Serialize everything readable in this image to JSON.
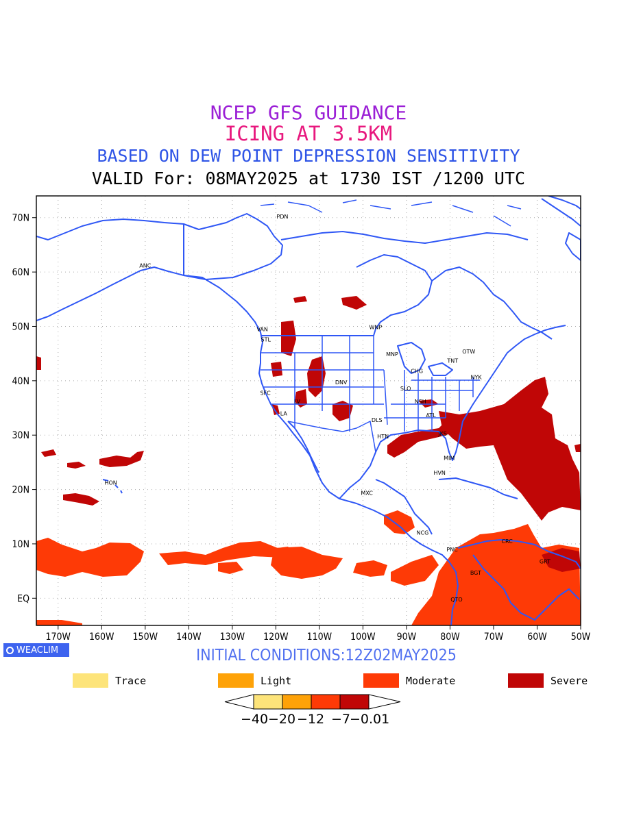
{
  "titles": {
    "line1": "NCEP GFS GUIDANCE",
    "line2": "ICING AT 3.5KM",
    "line3": "BASED ON DEW POINT DEPRESSION SENSITIVITY",
    "line4": "VALID For: 08MAY2025 at 1730 IST /1200 UTC"
  },
  "colors": {
    "line1": "#9b1fd6",
    "line2": "#e8187e",
    "line3": "#2e54e6",
    "line4": "#000000",
    "coast": "#2f57f5",
    "trace": "#fde47a",
    "light": "#fea208",
    "moderate": "#fe3a06",
    "severe": "#c00606",
    "initial": "#5070f0"
  },
  "axes": {
    "lat_labels": [
      "70N",
      "60N",
      "50N",
      "40N",
      "30N",
      "20N",
      "10N",
      "EQ"
    ],
    "lon_labels": [
      "170W",
      "160W",
      "150W",
      "140W",
      "130W",
      "120W",
      "110W",
      "100W",
      "90W",
      "80W",
      "70W",
      "60W",
      "50W"
    ]
  },
  "stations": [
    "ANC",
    "PDN",
    "VAN",
    "STL",
    "WNP",
    "MNP",
    "OTW",
    "TNT",
    "CHG",
    "NYK",
    "DNV",
    "SFC",
    "SLO",
    "LA",
    "LV",
    "DLS",
    "NSH",
    "ATL",
    "JKS",
    "HTN",
    "MIM",
    "HVN",
    "MXC",
    "HON",
    "NCG",
    "PNC",
    "CRC",
    "BGT",
    "QTO",
    "GRT"
  ],
  "logo": "WEACLIM",
  "initial_conditions": "INITIAL CONDITIONS:12Z02MAY2025",
  "legend": [
    {
      "label": "Trace",
      "color": "#fde47a"
    },
    {
      "label": "Light",
      "color": "#fea208"
    },
    {
      "label": "Moderate",
      "color": "#fe3a06"
    },
    {
      "label": "Severe",
      "color": "#c00606"
    }
  ],
  "colorbar": {
    "labels": [
      "-40",
      "-20",
      "-12",
      "-7",
      "-0.01"
    ]
  }
}
